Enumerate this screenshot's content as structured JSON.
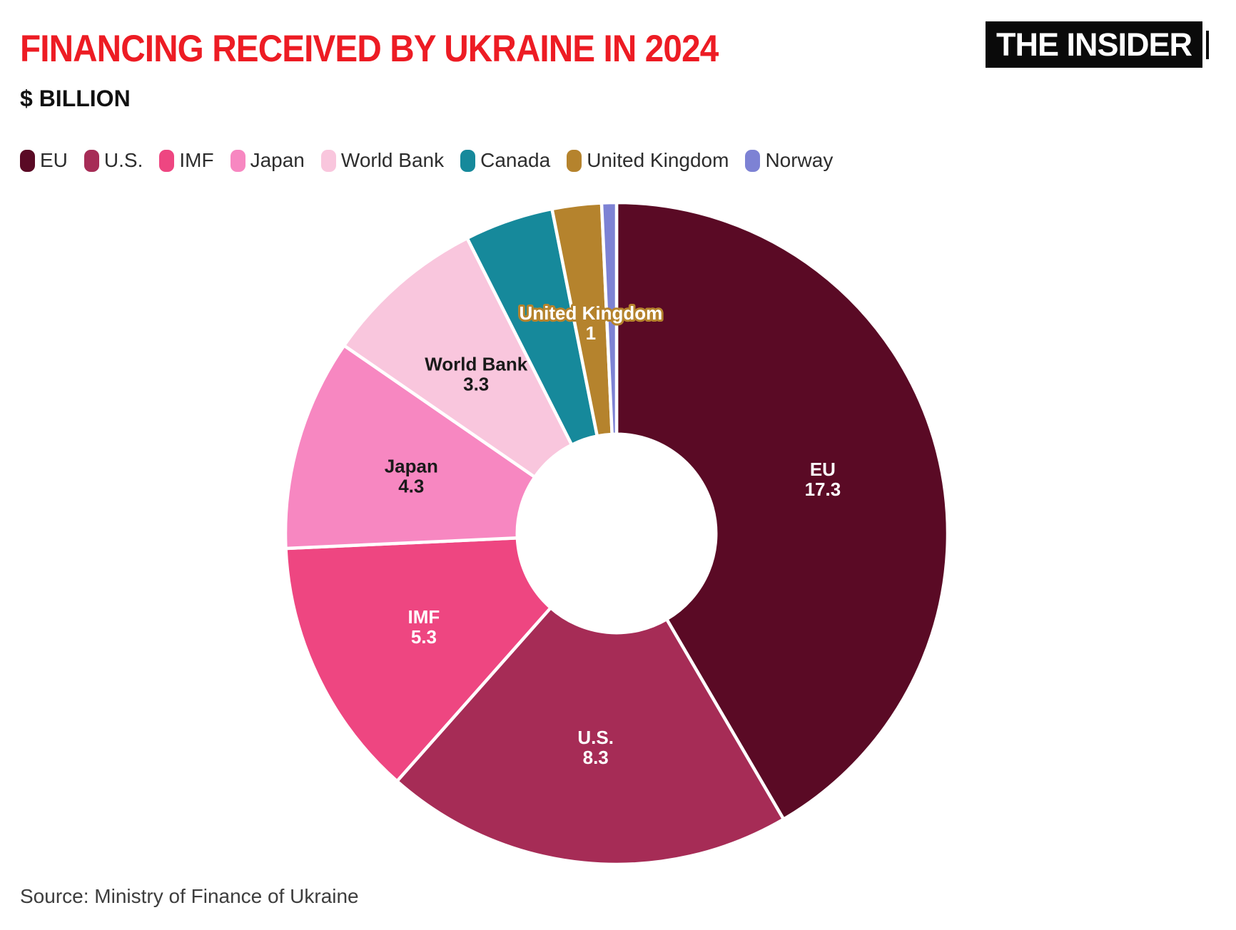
{
  "header": {
    "title": "FINANCING RECEIVED BY UKRAINE IN 2024",
    "subtitle": "$ BILLION",
    "title_color": "#ED1C24"
  },
  "logo": {
    "text": "THE INSIDER",
    "background": "#0a0a0a",
    "text_color": "#ffffff"
  },
  "legend": {
    "position": "top",
    "items": [
      {
        "label": "EU",
        "color": "#5A0A25"
      },
      {
        "label": "U.S.",
        "color": "#A62C56"
      },
      {
        "label": "IMF",
        "color": "#EE4681"
      },
      {
        "label": "Japan",
        "color": "#F787C1"
      },
      {
        "label": "World Bank",
        "color": "#F9C6DD"
      },
      {
        "label": "Canada",
        "color": "#16899B"
      },
      {
        "label": "United Kingdom",
        "color": "#B5832D"
      },
      {
        "label": "Norway",
        "color": "#7D82D4"
      }
    ]
  },
  "chart_data": {
    "type": "pie",
    "variant": "donut",
    "title": "FINANCING RECEIVED BY UKRAINE IN 2024",
    "units": "$ billion",
    "start_angle_deg": 0,
    "direction": "clockwise",
    "inner_radius_ratio": 0.3,
    "label_radius_ratio": 0.645,
    "legend_position": "top",
    "slices": [
      {
        "name": "EU",
        "value": 17.3,
        "color": "#5A0A25",
        "label": {
          "visible": true,
          "lines": [
            "EU",
            "17.3"
          ],
          "color": "#ffffff"
        }
      },
      {
        "name": "U.S.",
        "value": 8.3,
        "color": "#A62C56",
        "label": {
          "visible": true,
          "lines": [
            "U.S.",
            "8.3"
          ],
          "color": "#ffffff"
        }
      },
      {
        "name": "IMF",
        "value": 5.3,
        "color": "#EE4681",
        "label": {
          "visible": true,
          "lines": [
            "IMF",
            "5.3"
          ],
          "color": "#ffffff"
        }
      },
      {
        "name": "Japan",
        "value": 4.3,
        "color": "#F787C1",
        "label": {
          "visible": true,
          "lines": [
            "Japan",
            "4.3"
          ],
          "color": "#1a1a1a"
        }
      },
      {
        "name": "World Bank",
        "value": 3.3,
        "color": "#F9C6DD",
        "label": {
          "visible": true,
          "lines": [
            "World Bank",
            "3.3"
          ],
          "color": "#1a1a1a"
        }
      },
      {
        "name": "Canada",
        "value": 1.8,
        "estimated": true,
        "color": "#16899B",
        "label": {
          "visible": false
        }
      },
      {
        "name": "United Kingdom",
        "value": 1,
        "color": "#B5832D",
        "label": {
          "visible": true,
          "lines": [
            "United Kingdom",
            "1"
          ],
          "color": "#ffffff",
          "outline": "#B5832D"
        }
      },
      {
        "name": "Norway",
        "value": 0.3,
        "estimated": true,
        "color": "#7D82D4",
        "label": {
          "visible": false
        }
      }
    ]
  },
  "source": {
    "text": "Source: Ministry of Finance of Ukraine"
  }
}
